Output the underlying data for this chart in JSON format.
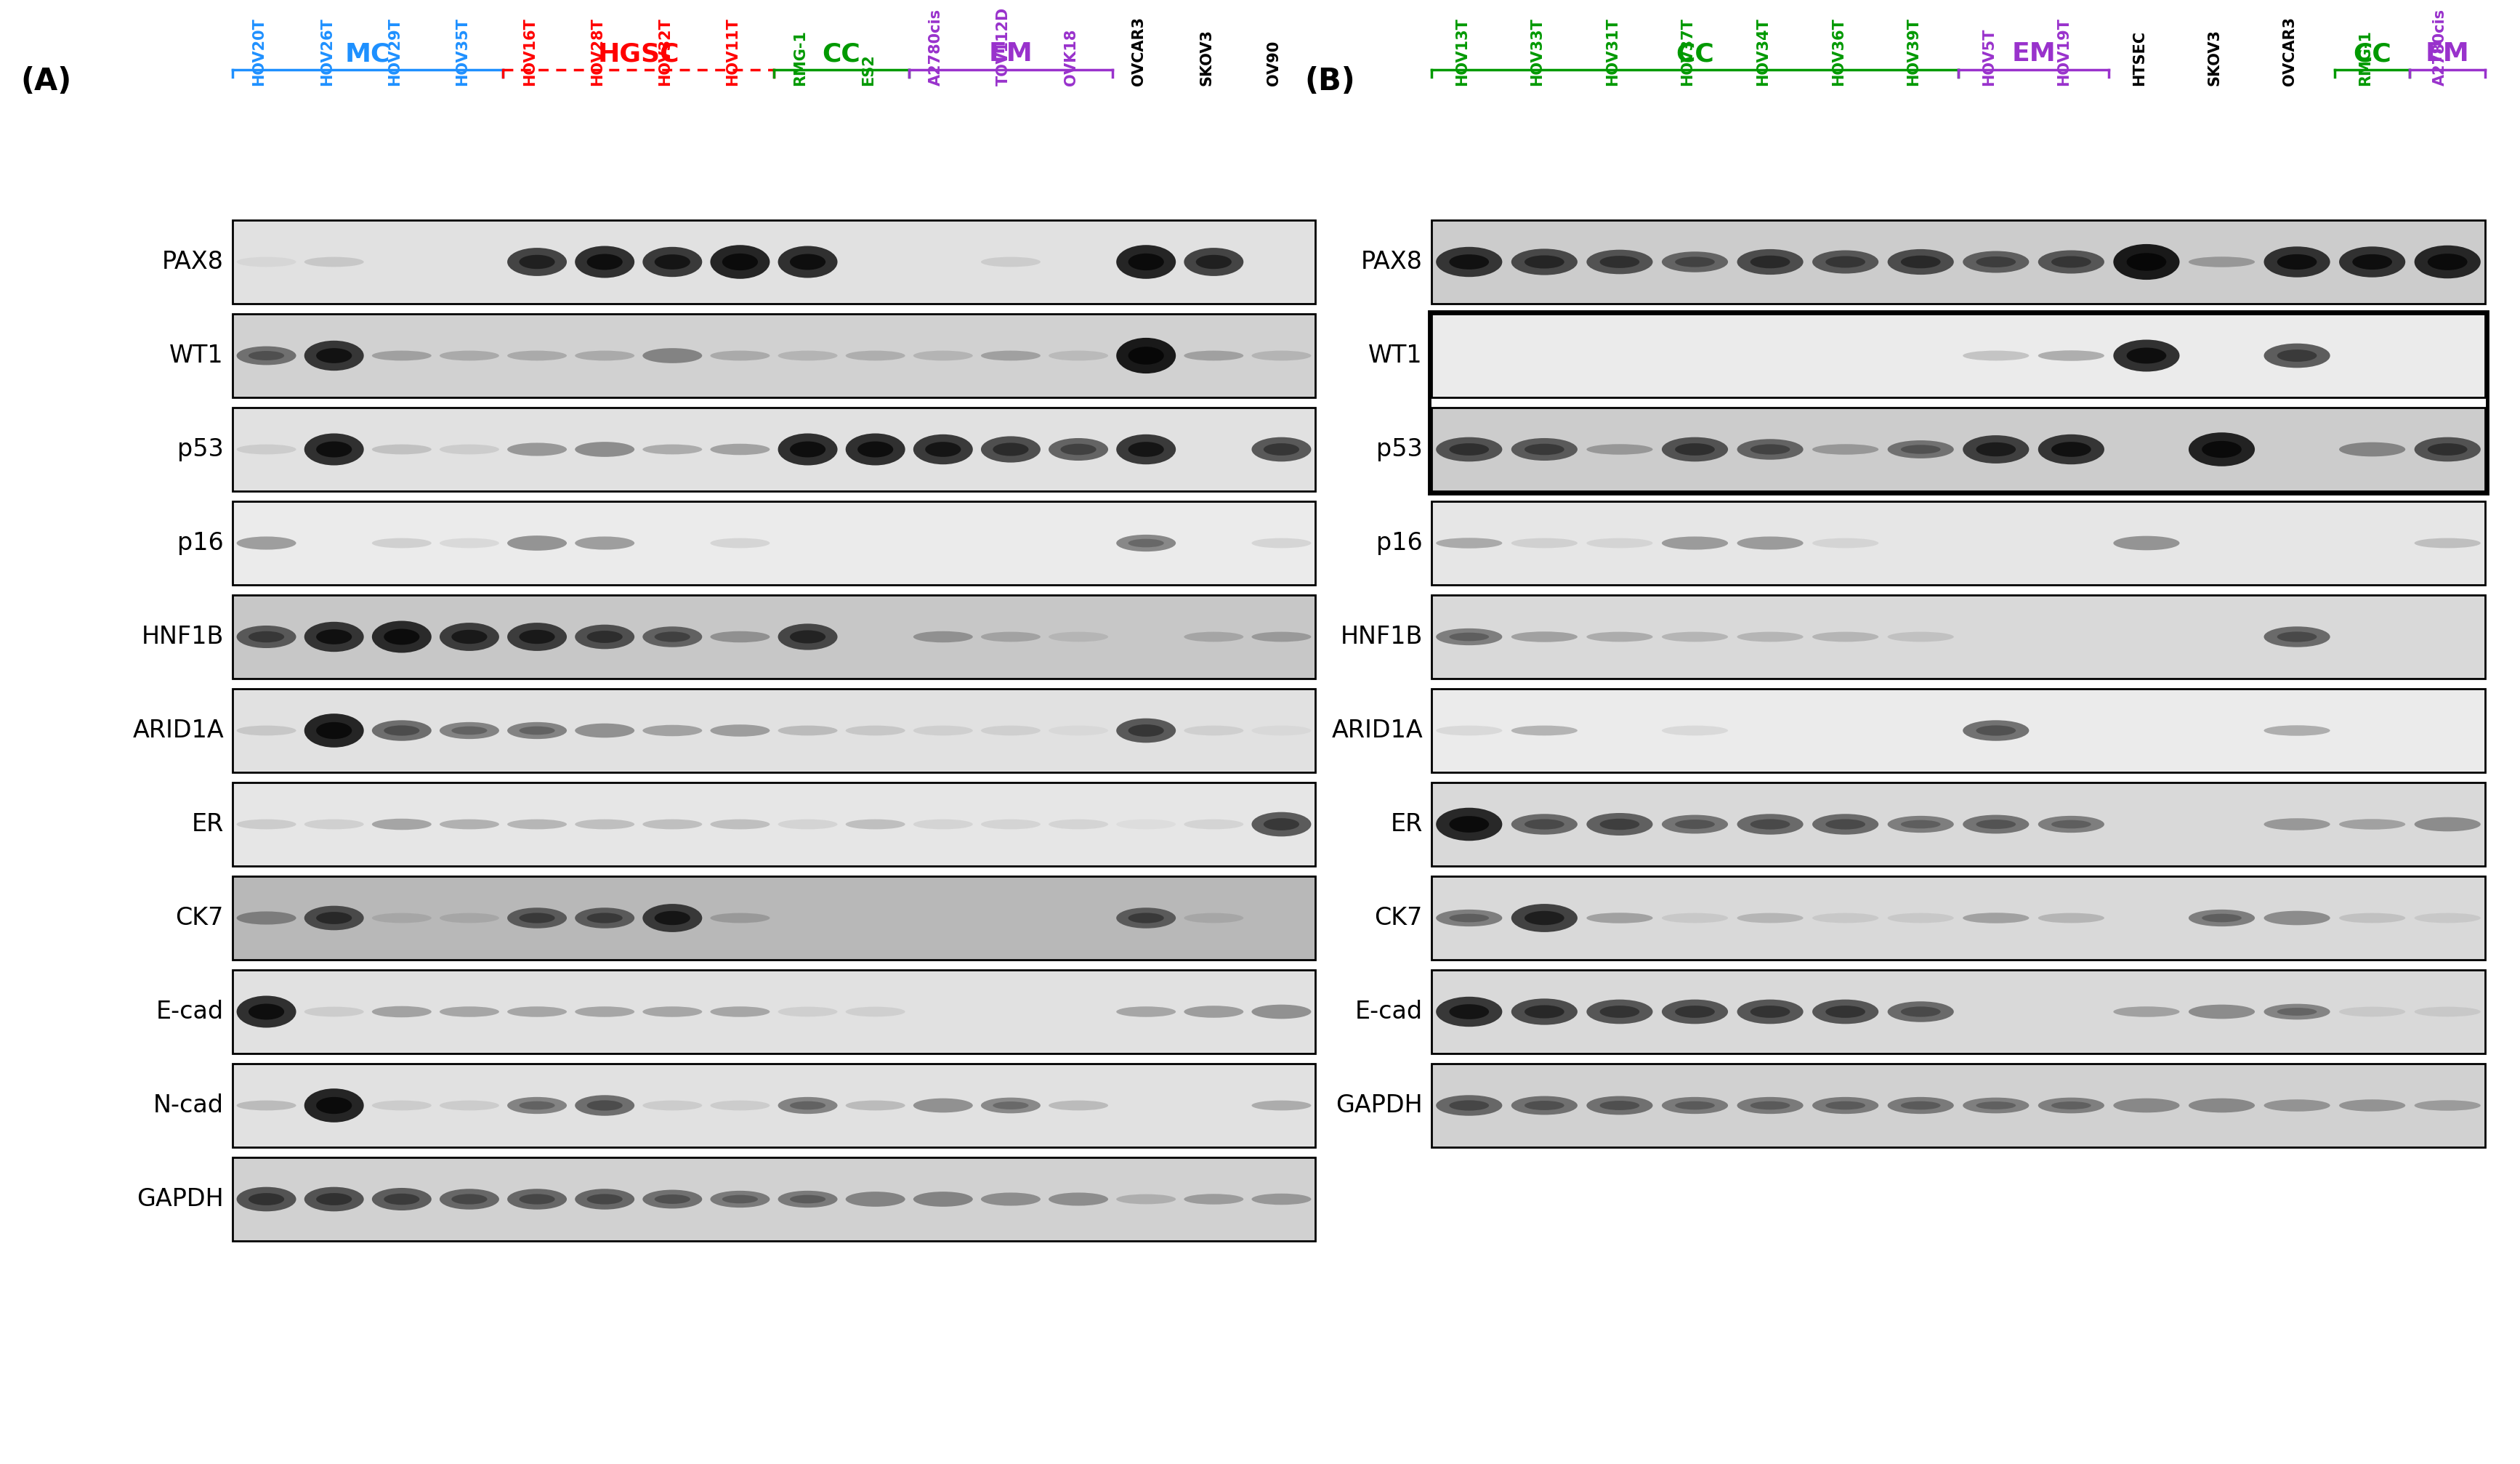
{
  "panel_A": {
    "label": "(A)",
    "samples": [
      "HOV20T",
      "HOV26T",
      "HOV29T",
      "HOV35T",
      "HOV16T",
      "HOV28T",
      "HOV32T",
      "HOV11T",
      "RMG-1",
      "ES2",
      "A2780cis",
      "TOV112D",
      "OVK18",
      "OVCAR3",
      "SKOV3",
      "OV90"
    ],
    "colors": [
      "#1E90FF",
      "#1E90FF",
      "#1E90FF",
      "#1E90FF",
      "#FF0000",
      "#FF0000",
      "#FF0000",
      "#FF0000",
      "#009900",
      "#009900",
      "#9932CC",
      "#9932CC",
      "#9932CC",
      "#000000",
      "#000000",
      "#000000"
    ],
    "brackets": [
      {
        "label": "MC",
        "color": "#1E90FF",
        "start": 0,
        "end": 4,
        "style": "solid"
      },
      {
        "label": "HGSC",
        "color": "#FF0000",
        "start": 4,
        "end": 8,
        "style": "dashed"
      },
      {
        "label": "CC",
        "color": "#009900",
        "start": 8,
        "end": 10,
        "style": "solid"
      },
      {
        "label": "EM",
        "color": "#9932CC",
        "start": 10,
        "end": 13,
        "style": "solid"
      }
    ],
    "markers": [
      "PAX8",
      "WT1",
      "p53",
      "p16",
      "HNF1B",
      "ARID1A",
      "ER",
      "CK7",
      "E-cad",
      "N-cad",
      "GAPDH"
    ],
    "patterns": {
      "PAX8": [
        0.05,
        0.12,
        0,
        0,
        0.75,
        0.85,
        0.8,
        0.9,
        0.85,
        0,
        0,
        0.1,
        0,
        0.9,
        0.75,
        0
      ],
      "WT1": [
        0.5,
        0.8,
        0.25,
        0.2,
        0.2,
        0.2,
        0.4,
        0.2,
        0.15,
        0.18,
        0.15,
        0.25,
        0.12,
        0.95,
        0.25,
        0.15
      ],
      "p53": [
        0.1,
        0.85,
        0.15,
        0.1,
        0.35,
        0.4,
        0.25,
        0.3,
        0.85,
        0.85,
        0.8,
        0.7,
        0.6,
        0.8,
        0,
        0.65
      ],
      "p16": [
        0.35,
        0,
        0.12,
        0.08,
        0.4,
        0.35,
        0,
        0.1,
        0,
        0,
        0,
        0,
        0,
        0.45,
        0,
        0.1
      ],
      "HNF1B": [
        0.6,
        0.8,
        0.85,
        0.75,
        0.75,
        0.65,
        0.55,
        0.3,
        0.7,
        0,
        0.3,
        0.2,
        0.1,
        0,
        0.18,
        0.25
      ],
      "ARID1A": [
        0.12,
        0.9,
        0.55,
        0.45,
        0.45,
        0.38,
        0.3,
        0.32,
        0.18,
        0.12,
        0.08,
        0.08,
        0.04,
        0.65,
        0.08,
        0.04
      ],
      "ER": [
        0.12,
        0.1,
        0.3,
        0.25,
        0.22,
        0.18,
        0.18,
        0.18,
        0.08,
        0.18,
        0.08,
        0.08,
        0.08,
        0.04,
        0.08,
        0.65
      ],
      "CK7": [
        0.35,
        0.65,
        0.1,
        0.1,
        0.55,
        0.55,
        0.75,
        0.18,
        0,
        0,
        0,
        0,
        0,
        0.55,
        0.1,
        0
      ],
      "E-cad": [
        0.85,
        0.1,
        0.3,
        0.28,
        0.28,
        0.28,
        0.28,
        0.28,
        0.08,
        0.08,
        0,
        0,
        0,
        0.28,
        0.32,
        0.38
      ],
      "N-cad": [
        0.18,
        0.9,
        0.1,
        0.1,
        0.45,
        0.55,
        0.1,
        0.1,
        0.45,
        0.18,
        0.38,
        0.42,
        0.18,
        0,
        0,
        0.25
      ],
      "GAPDH": [
        0.65,
        0.65,
        0.6,
        0.55,
        0.55,
        0.55,
        0.5,
        0.45,
        0.45,
        0.4,
        0.4,
        0.35,
        0.35,
        0.18,
        0.28,
        0.3
      ]
    },
    "bg_levels": {
      "PAX8": 0.88,
      "WT1": 0.82,
      "p53": 0.88,
      "p16": 0.92,
      "HNF1B": 0.78,
      "ARID1A": 0.88,
      "ER": 0.9,
      "CK7": 0.72,
      "E-cad": 0.88,
      "N-cad": 0.88,
      "GAPDH": 0.82
    }
  },
  "panel_B": {
    "label": "(B)",
    "samples": [
      "HOV13T",
      "HOV33T",
      "HOV31T",
      "HOV37T",
      "HOV34T",
      "HOV36T",
      "HOV39T",
      "HOV5T",
      "HOV19T",
      "HTSEC",
      "SKOV3",
      "OVCAR3",
      "RMG-1",
      "A2780cis"
    ],
    "colors": [
      "#009900",
      "#009900",
      "#009900",
      "#009900",
      "#009900",
      "#009900",
      "#009900",
      "#9932CC",
      "#9932CC",
      "#000000",
      "#000000",
      "#000000",
      "#009900",
      "#9932CC"
    ],
    "brackets": [
      {
        "label": "CC",
        "color": "#009900",
        "start": 0,
        "end": 7,
        "style": "solid"
      },
      {
        "label": "EM",
        "color": "#9932CC",
        "start": 7,
        "end": 9,
        "style": "solid"
      },
      {
        "label": "CC",
        "color": "#009900",
        "start": 12,
        "end": 13,
        "style": "solid"
      },
      {
        "label": "EM",
        "color": "#9932CC",
        "start": 13,
        "end": 14,
        "style": "solid"
      }
    ],
    "markers": [
      "PAX8",
      "WT1",
      "p53",
      "p16",
      "HNF1B",
      "ARID1A",
      "ER",
      "CK7",
      "E-cad",
      "GAPDH"
    ],
    "patterns": {
      "PAX8": [
        0.8,
        0.7,
        0.65,
        0.55,
        0.68,
        0.62,
        0.68,
        0.58,
        0.62,
        0.95,
        0.28,
        0.82,
        0.82,
        0.88
      ],
      "WT1": [
        0,
        0,
        0,
        0,
        0,
        0,
        0,
        0.18,
        0.28,
        0.85,
        0,
        0.65,
        0,
        0
      ],
      "p53": [
        0.65,
        0.6,
        0.28,
        0.65,
        0.55,
        0.28,
        0.48,
        0.75,
        0.8,
        0,
        0.9,
        0,
        0.38,
        0.65
      ],
      "p16": [
        0.28,
        0.1,
        0.08,
        0.35,
        0.35,
        0.08,
        0,
        0,
        0,
        0.38,
        0,
        0,
        0,
        0.18
      ],
      "HNF1B": [
        0.45,
        0.28,
        0.22,
        0.18,
        0.18,
        0.18,
        0.12,
        0,
        0,
        0,
        0,
        0.55,
        0,
        0
      ],
      "ARID1A": [
        0.08,
        0.25,
        0,
        0.08,
        0,
        0,
        0,
        0.55,
        0,
        0,
        0,
        0.28,
        0,
        0
      ],
      "ER": [
        0.88,
        0.55,
        0.6,
        0.5,
        0.55,
        0.55,
        0.45,
        0.5,
        0.45,
        0,
        0,
        0.32,
        0.28,
        0.38
      ],
      "CK7": [
        0.45,
        0.75,
        0.28,
        0.08,
        0.18,
        0.08,
        0.08,
        0.28,
        0.18,
        0,
        0.45,
        0.38,
        0.12,
        0.08
      ],
      "E-cad": [
        0.8,
        0.7,
        0.65,
        0.65,
        0.65,
        0.65,
        0.55,
        0,
        0,
        0.28,
        0.38,
        0.42,
        0.08,
        0.08
      ],
      "GAPDH": [
        0.55,
        0.5,
        0.5,
        0.45,
        0.45,
        0.45,
        0.45,
        0.42,
        0.42,
        0.38,
        0.38,
        0.32,
        0.32,
        0.28
      ]
    },
    "bg_levels": {
      "PAX8": 0.8,
      "WT1": 0.92,
      "p53": 0.8,
      "p16": 0.9,
      "HNF1B": 0.85,
      "ARID1A": 0.92,
      "ER": 0.85,
      "CK7": 0.85,
      "E-cad": 0.85,
      "GAPDH": 0.82
    }
  },
  "background_color": "#FFFFFF"
}
